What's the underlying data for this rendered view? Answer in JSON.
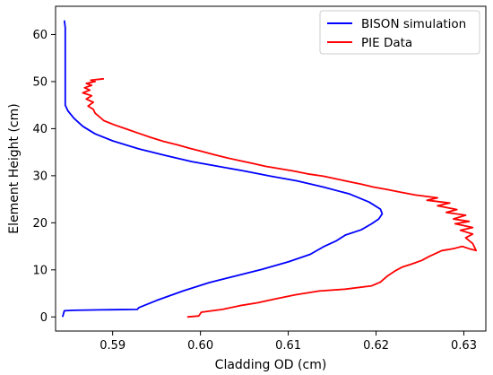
{
  "chart_data": {
    "type": "line",
    "title": "",
    "xlabel": "Cladding OD (cm)",
    "ylabel": "Element Height (cm)",
    "xlim": [
      0.5835,
      0.6325
    ],
    "ylim": [
      -3,
      66
    ],
    "xticks": [
      0.59,
      0.6,
      0.61,
      0.62,
      0.63
    ],
    "xtick_labels": [
      "0.59",
      "0.60",
      "0.61",
      "0.62",
      "0.63"
    ],
    "yticks": [
      0,
      10,
      20,
      30,
      40,
      50,
      60
    ],
    "ytick_labels": [
      "0",
      "10",
      "20",
      "30",
      "40",
      "50",
      "60"
    ],
    "grid": false,
    "legend_position": "top-right",
    "series": [
      {
        "name": "BISON simulation",
        "color": "#0000ff",
        "x": [
          0.5843,
          0.5845,
          0.5855,
          0.5885,
          0.5928,
          0.593,
          0.595,
          0.598,
          0.601,
          0.604,
          0.607,
          0.61,
          0.6125,
          0.614,
          0.6155,
          0.6165,
          0.6183,
          0.6195,
          0.6203,
          0.6207,
          0.6205,
          0.6192,
          0.617,
          0.614,
          0.611,
          0.608,
          0.605,
          0.602,
          0.599,
          0.596,
          0.593,
          0.59,
          0.588,
          0.5866,
          0.5856,
          0.5849,
          0.5846,
          0.5846,
          0.5846,
          0.5846,
          0.5845
        ],
        "y": [
          0.0,
          1.3,
          1.4,
          1.5,
          1.6,
          2.0,
          3.5,
          5.5,
          7.3,
          8.7,
          10.1,
          11.7,
          13.3,
          14.9,
          16.2,
          17.4,
          18.5,
          19.8,
          20.8,
          21.9,
          22.9,
          24.4,
          26.1,
          27.6,
          28.9,
          29.9,
          31.0,
          32.0,
          33.0,
          34.3,
          35.7,
          37.4,
          38.9,
          40.5,
          42.2,
          43.8,
          45.0,
          50.0,
          56.0,
          61.5,
          63.0
        ]
      },
      {
        "name": "PIE Data",
        "color": "#ff0000",
        "x": [
          0.5985,
          0.5998,
          0.6001,
          0.6025,
          0.6045,
          0.6065,
          0.6085,
          0.6108,
          0.6135,
          0.6165,
          0.6195,
          0.6205,
          0.6213,
          0.6222,
          0.623,
          0.624,
          0.6252,
          0.626,
          0.6268,
          0.6275,
          0.6282,
          0.629,
          0.6298,
          0.6306,
          0.6314,
          0.631,
          0.6302,
          0.631,
          0.6296,
          0.631,
          0.629,
          0.6306,
          0.6288,
          0.6302,
          0.628,
          0.6292,
          0.627,
          0.6284,
          0.6258,
          0.627,
          0.6245,
          0.6228,
          0.6212,
          0.6197,
          0.6183,
          0.6168,
          0.6155,
          0.614,
          0.6122,
          0.6106,
          0.609,
          0.6074,
          0.606,
          0.6045,
          0.603,
          0.6017,
          0.6003,
          0.5988,
          0.5973,
          0.5958,
          0.5944,
          0.593,
          0.5916,
          0.5902,
          0.589,
          0.5885,
          0.588,
          0.5878,
          0.5872,
          0.5878,
          0.587,
          0.5876,
          0.5866,
          0.5874,
          0.5868,
          0.5876,
          0.587,
          0.588,
          0.5875,
          0.5885,
          0.589
        ],
        "y": [
          0.0,
          0.2,
          1.0,
          1.6,
          2.4,
          3.0,
          3.8,
          4.7,
          5.5,
          5.9,
          6.6,
          7.4,
          8.7,
          9.8,
          10.6,
          11.2,
          12.0,
          12.8,
          13.5,
          14.1,
          14.3,
          14.6,
          15.0,
          14.5,
          14.1,
          15.6,
          16.8,
          17.6,
          18.4,
          19.0,
          19.8,
          20.3,
          20.8,
          21.6,
          22.2,
          22.8,
          23.6,
          24.2,
          24.8,
          25.3,
          25.9,
          26.5,
          27.1,
          27.6,
          28.2,
          28.8,
          29.3,
          29.9,
          30.4,
          31.0,
          31.5,
          32.0,
          32.6,
          33.2,
          33.8,
          34.4,
          35.1,
          35.8,
          36.6,
          37.3,
          38.1,
          39.0,
          39.9,
          40.8,
          41.7,
          42.5,
          43.3,
          44.1,
          44.8,
          45.6,
          46.3,
          47.0,
          47.6,
          48.2,
          48.7,
          49.2,
          49.6,
          50.0,
          50.3,
          50.5,
          50.6
        ]
      }
    ]
  }
}
